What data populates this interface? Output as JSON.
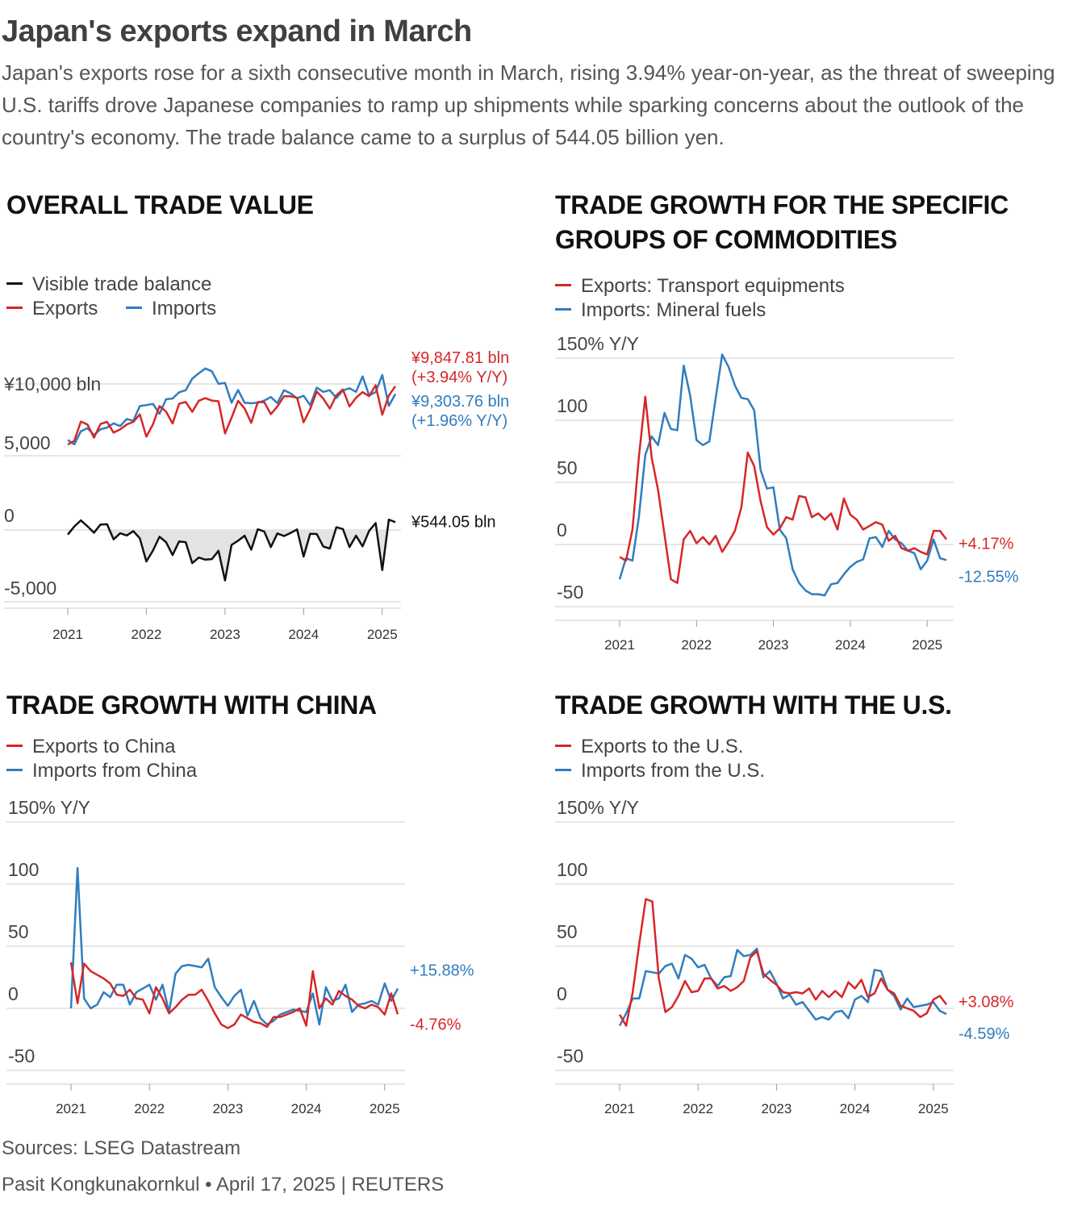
{
  "header": {
    "title": "Japan's exports expand in March",
    "subtitle": "Japan's exports rose for a sixth consecutive month in March, rising 3.94% year-on-year, as the threat of sweeping U.S. tariffs drove Japanese companies to ramp up shipments while sparking concerns about the outlook of the country's economy. The trade balance came to a surplus of 544.05 billion yen."
  },
  "colors": {
    "red": "#d62728",
    "blue": "#2f7dbf",
    "black": "#111111",
    "grid": "#e6e6e6",
    "area": "#e3e3e3"
  },
  "panels": {
    "trade_value": {
      "title": "OVERALL TRADE VALUE",
      "legend": [
        {
          "label": "Visible trade balance",
          "color": "#111111"
        },
        {
          "label": "Exports",
          "color": "#d62728"
        },
        {
          "label": "Imports",
          "color": "#2f7dbf"
        }
      ]
    },
    "commodities": {
      "title": "TRADE GROWTH FOR THE SPECIFIC GROUPS OF COMMODITIES",
      "legend": [
        {
          "label": "Exports: Transport equipments",
          "color": "#d62728"
        },
        {
          "label": "Imports: Mineral fuels",
          "color": "#2f7dbf"
        }
      ]
    },
    "china": {
      "title": "TRADE GROWTH WITH CHINA",
      "legend": [
        {
          "label": "Exports to China",
          "color": "#d62728"
        },
        {
          "label": "Imports from China",
          "color": "#2f7dbf"
        }
      ]
    },
    "us": {
      "title": "TRADE GROWTH WITH THE U.S.",
      "legend": [
        {
          "label": "Exports to the U.S.",
          "color": "#d62728"
        },
        {
          "label": "Imports from the U.S.",
          "color": "#2f7dbf"
        }
      ]
    }
  },
  "footer": {
    "sources": "Sources: LSEG Datastream",
    "credit": "Pasit Kongkunakornkul • April 17, 2025 | REUTERS"
  },
  "chart_data": [
    {
      "id": "trade_value",
      "type": "line",
      "title": "OVERALL TRADE VALUE",
      "unit": "billion yen",
      "x_start": "2021-01",
      "x_ticks": [
        "2021",
        "2022",
        "2023",
        "2024",
        "2025"
      ],
      "upper": {
        "ylim": [
          4000,
          11000
        ],
        "y_ticks": [
          5000,
          10000
        ],
        "y_tick_labels": [
          "5,000",
          "¥10,000 bln"
        ],
        "series": [
          {
            "name": "Exports",
            "color": "#d62728",
            "values": [
              5780,
              6040,
              7380,
              7180,
              6260,
              7220,
              7360,
              6610,
              6840,
              7180,
              7360,
              7880,
              6330,
              7190,
              8460,
              8080,
              7250,
              8620,
              8750,
              8060,
              8830,
              9010,
              8840,
              8790,
              6550,
              7650,
              8830,
              8290,
              7290,
              8740,
              8730,
              7900,
              8430,
              9150,
              9140,
              9040,
              7330,
              8250,
              9470,
              8980,
              8280,
              9210,
              9620,
              8440,
              9040,
              9430,
              9150,
              9910,
              7860,
              9190,
              9848
            ],
            "end_label": [
              "¥9,847.81 bln",
              "(+3.94% Y/Y)"
            ]
          },
          {
            "name": "Imports",
            "color": "#2f7dbf",
            "values": [
              6100,
              5800,
              6710,
              6920,
              6450,
              6840,
              6960,
              7260,
              7070,
              7560,
              7440,
              8460,
              8530,
              8610,
              7920,
              8930,
              8990,
              9420,
              9570,
              10370,
              10750,
              11080,
              10880,
              10010,
              10080,
              8690,
              9580,
              8690,
              8660,
              8690,
              8840,
              9090,
              8670,
              9570,
              9350,
              9000,
              9180,
              8520,
              9750,
              9450,
              9570,
              9020,
              9550,
              9700,
              9450,
              10530,
              9210,
              9430,
              10630,
              8470,
              9304
            ],
            "end_label": [
              "¥9,303.76 bln",
              "(+1.96% Y/Y)"
            ]
          }
        ]
      },
      "lower": {
        "ylim": [
          -5000,
          1000
        ],
        "y_ticks": [
          0,
          -5000
        ],
        "y_tick_labels": [
          "0",
          "-5,000"
        ],
        "series": [
          {
            "name": "Visible trade balance",
            "color": "#111111",
            "values": [
              -320,
              240,
              670,
              260,
              -190,
              380,
              400,
              -650,
              -230,
              -380,
              -80,
              -580,
              -2190,
              -1430,
              -470,
              -850,
              -1750,
              -800,
              -850,
              -2310,
              -1920,
              -2070,
              -2030,
              -1450,
              -3510,
              -1040,
              -750,
              -400,
              -1370,
              50,
              -110,
              -1190,
              -240,
              -420,
              -210,
              40,
              -1850,
              -270,
              -280,
              -1160,
              -1290,
              190,
              70,
              -1190,
              -400,
              -1140,
              -60,
              480,
              -2790,
              720,
              544
            ],
            "fill_negative": true,
            "end_label": [
              "¥544.05 bln"
            ]
          }
        ]
      }
    },
    {
      "id": "commodities",
      "type": "line",
      "title": "TRADE GROWTH FOR THE SPECIFIC GROUPS OF COMMODITIES",
      "unit": "% Y/Y",
      "ylim": [
        -55,
        155
      ],
      "y_ticks": [
        -50,
        0,
        50,
        100,
        150
      ],
      "y_tick_labels": [
        "-50",
        "0",
        "50",
        "100",
        "150% Y/Y"
      ],
      "x_start": "2021-01",
      "x_ticks": [
        "2021",
        "2022",
        "2023",
        "2024",
        "2025"
      ],
      "series": [
        {
          "name": "Exports: Transport equipments",
          "color": "#d62728",
          "values": [
            -10,
            -13,
            12,
            70,
            119,
            70,
            44,
            8,
            -28,
            -31,
            4,
            11,
            1,
            6,
            0,
            7,
            -6,
            2,
            11,
            30,
            74,
            63,
            35,
            14,
            8,
            13,
            22,
            20,
            39,
            38,
            22,
            25,
            20,
            25,
            12,
            37,
            24,
            20,
            12,
            15,
            18,
            16,
            3,
            7,
            -3,
            -5,
            -3,
            -6,
            -8,
            11,
            11,
            4.17
          ],
          "end_label": "+4.17%"
        },
        {
          "name": "Imports: Mineral fuels",
          "color": "#2f7dbf",
          "values": [
            -28,
            -11,
            -13,
            22,
            72,
            87,
            80,
            106,
            93,
            92,
            144,
            120,
            84,
            80,
            83,
            118,
            153,
            143,
            128,
            118,
            117,
            108,
            60,
            45,
            46,
            12,
            5,
            -20,
            -31,
            -37,
            -40,
            -40,
            -41,
            -32,
            -31,
            -24,
            -18,
            -14,
            -12,
            5,
            6,
            -2,
            11,
            4,
            1,
            -5,
            -7,
            -20,
            -13,
            4,
            -11,
            -12.55
          ],
          "end_label": "-12.55%"
        }
      ]
    },
    {
      "id": "china",
      "type": "line",
      "title": "TRADE GROWTH WITH CHINA",
      "unit": "% Y/Y",
      "ylim": [
        -55,
        155
      ],
      "y_ticks": [
        -50,
        0,
        50,
        100,
        150
      ],
      "y_tick_labels": [
        "-50",
        "0",
        "50",
        "100",
        "150% Y/Y"
      ],
      "x_start": "2021-01",
      "x_ticks": [
        "2021",
        "2022",
        "2023",
        "2024",
        "2025"
      ],
      "series": [
        {
          "name": "Exports to China",
          "color": "#d62728",
          "values": [
            37,
            4,
            36,
            30,
            27,
            24,
            20,
            11,
            10,
            15,
            8,
            7,
            -4,
            17,
            8,
            -4,
            1,
            7,
            11,
            11,
            15,
            6,
            -4,
            -13,
            -16,
            -13,
            -5,
            -8,
            -11,
            -12,
            -15,
            -7,
            -7,
            -5,
            -3,
            0,
            -14,
            30,
            0,
            8,
            3,
            14,
            10,
            7,
            2,
            0,
            3,
            1,
            -5,
            12,
            -4.76
          ],
          "end_label": "-4.76%"
        },
        {
          "name": "Imports from China",
          "color": "#2f7dbf",
          "values": [
            0,
            113,
            8,
            0,
            3,
            13,
            9,
            19,
            19,
            3,
            13,
            16,
            19,
            7,
            19,
            -3,
            28,
            34,
            35,
            34,
            33,
            40,
            17,
            9,
            2,
            10,
            15,
            -6,
            6,
            -8,
            -13,
            -10,
            -5,
            -3,
            -1,
            -2,
            -3,
            12,
            -13,
            17,
            6,
            8,
            19,
            -3,
            3,
            4,
            6,
            3,
            20,
            6,
            15.88
          ],
          "end_label": "+15.88%"
        }
      ]
    },
    {
      "id": "us",
      "type": "line",
      "title": "TRADE GROWTH WITH THE U.S.",
      "unit": "% Y/Y",
      "ylim": [
        -55,
        155
      ],
      "y_ticks": [
        -50,
        0,
        50,
        100,
        150
      ],
      "y_tick_labels": [
        "-50",
        "0",
        "50",
        "100",
        "150% Y/Y"
      ],
      "x_start": "2021-01",
      "x_ticks": [
        "2021",
        "2022",
        "2023",
        "2024",
        "2025"
      ],
      "series": [
        {
          "name": "Exports to the U.S.",
          "color": "#d62728",
          "values": [
            -5,
            -14,
            13,
            52,
            88,
            86,
            24,
            -3,
            1,
            10,
            22,
            13,
            14,
            24,
            24,
            16,
            18,
            14,
            17,
            22,
            41,
            46,
            28,
            23,
            19,
            13,
            12,
            13,
            12,
            16,
            7,
            14,
            9,
            14,
            9,
            21,
            16,
            23,
            9,
            12,
            24,
            15,
            12,
            2,
            0,
            -2,
            -7,
            -4,
            7,
            10,
            3.08
          ],
          "end_label": "+3.08%"
        },
        {
          "name": "Imports from the U.S.",
          "color": "#2f7dbf",
          "values": [
            -14,
            -4,
            8,
            8,
            30,
            29,
            28,
            34,
            36,
            24,
            43,
            40,
            33,
            35,
            24,
            18,
            25,
            26,
            47,
            42,
            43,
            48,
            25,
            30,
            20,
            8,
            11,
            3,
            5,
            -2,
            -9,
            -7,
            -9,
            -3,
            -2,
            -8,
            7,
            10,
            5,
            31,
            30,
            15,
            10,
            -1,
            8,
            1,
            2,
            3,
            5,
            -2,
            -4.59
          ],
          "end_label": "-4.59%"
        }
      ]
    }
  ]
}
